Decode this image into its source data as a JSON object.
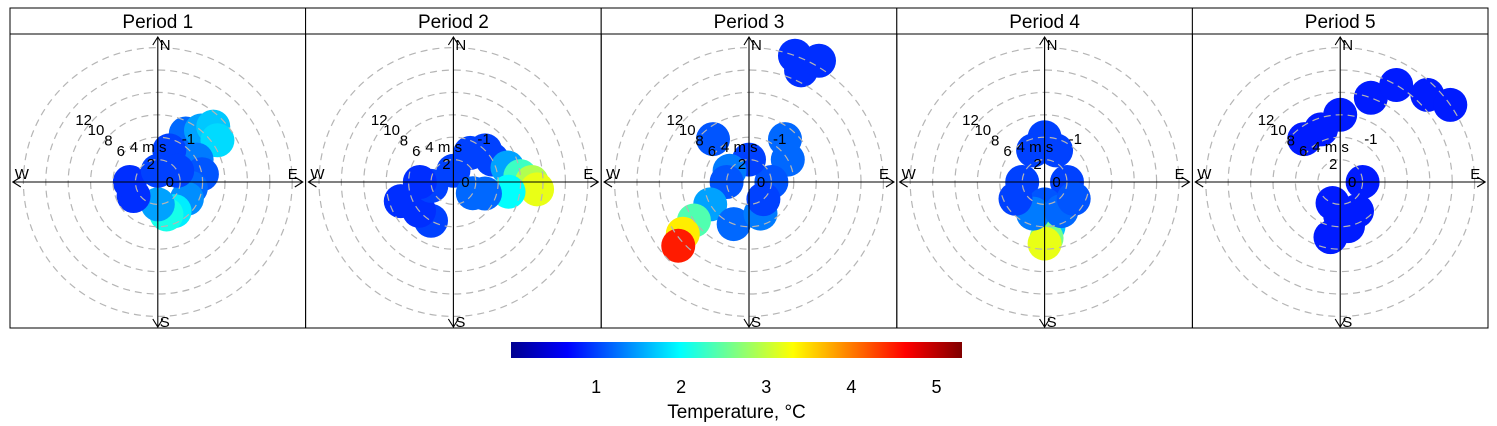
{
  "chart_data": {
    "type": "polar-heatmap",
    "variable": "Temperature",
    "ring_values": [
      2,
      4,
      6,
      8,
      10,
      12
    ],
    "ring_unit_label": "4 m s",
    "ring_unit_superscript": "-1",
    "ring_label_values": [
      "12",
      "10",
      "8",
      "6",
      "2",
      "0"
    ],
    "compass": [
      "N",
      "E",
      "S",
      "W"
    ],
    "panels": [
      {
        "title": "Period 1",
        "cells": [
          {
            "dir": 30,
            "speed": 5,
            "temp": 1.2
          },
          {
            "dir": 40,
            "speed": 6,
            "temp": 1.5
          },
          {
            "dir": 45,
            "speed": 7,
            "temp": 1.7
          },
          {
            "dir": 55,
            "speed": 6.5,
            "temp": 1.8
          },
          {
            "dir": 60,
            "speed": 4,
            "temp": 1.3
          },
          {
            "dir": 80,
            "speed": 4,
            "temp": 1.1
          },
          {
            "dir": 100,
            "speed": 3,
            "temp": 1.2
          },
          {
            "dir": 120,
            "speed": 3,
            "temp": 1.4
          },
          {
            "dir": 150,
            "speed": 3,
            "temp": 1.9
          },
          {
            "dir": 165,
            "speed": 3,
            "temp": 2.1
          },
          {
            "dir": 180,
            "speed": 2,
            "temp": 1.5
          },
          {
            "dir": 240,
            "speed": 2.5,
            "temp": 0.9
          },
          {
            "dir": 270,
            "speed": 2.5,
            "temp": 0.9
          },
          {
            "dir": 20,
            "speed": 3,
            "temp": 1.0
          },
          {
            "dir": 0,
            "speed": 1,
            "temp": 1.0
          },
          {
            "dir": 60,
            "speed": 2,
            "temp": 1.0
          }
        ]
      },
      {
        "title": "Period 2",
        "cells": [
          {
            "dir": 45,
            "speed": 4,
            "temp": 1.0
          },
          {
            "dir": 60,
            "speed": 4,
            "temp": 1.0
          },
          {
            "dir": 75,
            "speed": 5,
            "temp": 1.5
          },
          {
            "dir": 85,
            "speed": 6,
            "temp": 2.3
          },
          {
            "dir": 90,
            "speed": 7,
            "temp": 2.9
          },
          {
            "dir": 95,
            "speed": 7.5,
            "temp": 3.2
          },
          {
            "dir": 100,
            "speed": 5,
            "temp": 2.0
          },
          {
            "dir": 110,
            "speed": 3,
            "temp": 1.2
          },
          {
            "dir": 210,
            "speed": 4,
            "temp": 1.0
          },
          {
            "dir": 230,
            "speed": 4,
            "temp": 0.9
          },
          {
            "dir": 250,
            "speed": 5,
            "temp": 0.9
          },
          {
            "dir": 260,
            "speed": 2,
            "temp": 1.0
          },
          {
            "dir": 270,
            "speed": 3,
            "temp": 0.9
          },
          {
            "dir": 0,
            "speed": 1,
            "temp": 1.0
          },
          {
            "dir": 30,
            "speed": 3,
            "temp": 1.0
          },
          {
            "dir": 120,
            "speed": 2,
            "temp": 1.2
          }
        ]
      },
      {
        "title": "Period 3",
        "cells": [
          {
            "dir": 20,
            "speed": 12,
            "temp": 0.9
          },
          {
            "dir": 25,
            "speed": 11,
            "temp": 0.9
          },
          {
            "dir": 30,
            "speed": 12.5,
            "temp": 0.9
          },
          {
            "dir": 320,
            "speed": 5,
            "temp": 1.1
          },
          {
            "dir": 40,
            "speed": 5,
            "temp": 1.2
          },
          {
            "dir": 60,
            "speed": 4,
            "temp": 1.2
          },
          {
            "dir": 90,
            "speed": 2,
            "temp": 1.1
          },
          {
            "dir": 0,
            "speed": 2,
            "temp": 1.0
          },
          {
            "dir": 300,
            "speed": 2,
            "temp": 1.3
          },
          {
            "dir": 270,
            "speed": 2,
            "temp": 1.1
          },
          {
            "dir": 240,
            "speed": 4,
            "temp": 1.5
          },
          {
            "dir": 235,
            "speed": 6,
            "temp": 2.4
          },
          {
            "dir": 232,
            "speed": 7.5,
            "temp": 3.4
          },
          {
            "dir": 228,
            "speed": 8.5,
            "temp": 4.5
          },
          {
            "dir": 200,
            "speed": 4,
            "temp": 1.2
          },
          {
            "dir": 160,
            "speed": 3,
            "temp": 1.3
          },
          {
            "dir": 140,
            "speed": 2,
            "temp": 1.0
          }
        ]
      },
      {
        "title": "Period 4",
        "cells": [
          {
            "dir": 0,
            "speed": 4,
            "temp": 1.0
          },
          {
            "dir": 20,
            "speed": 3,
            "temp": 1.0
          },
          {
            "dir": 340,
            "speed": 3,
            "temp": 1.0
          },
          {
            "dir": 90,
            "speed": 2,
            "temp": 1.0
          },
          {
            "dir": 270,
            "speed": 2,
            "temp": 1.0
          },
          {
            "dir": 180,
            "speed": 2,
            "temp": 1.1
          },
          {
            "dir": 175,
            "speed": 4,
            "temp": 1.7
          },
          {
            "dir": 178,
            "speed": 5,
            "temp": 2.6
          },
          {
            "dir": 180,
            "speed": 5.5,
            "temp": 3.2
          },
          {
            "dir": 200,
            "speed": 3,
            "temp": 1.3
          },
          {
            "dir": 150,
            "speed": 3,
            "temp": 1.2
          },
          {
            "dir": 120,
            "speed": 3,
            "temp": 1.1
          },
          {
            "dir": 240,
            "speed": 3,
            "temp": 1.0
          }
        ]
      },
      {
        "title": "Period 5",
        "cells": [
          {
            "dir": 0,
            "speed": 6,
            "temp": 0.8
          },
          {
            "dir": 20,
            "speed": 8,
            "temp": 0.8
          },
          {
            "dir": 30,
            "speed": 10,
            "temp": 0.8
          },
          {
            "dir": 45,
            "speed": 11,
            "temp": 0.8
          },
          {
            "dir": 55,
            "speed": 12,
            "temp": 0.8
          },
          {
            "dir": 340,
            "speed": 5,
            "temp": 0.8
          },
          {
            "dir": 320,
            "speed": 5,
            "temp": 0.8
          },
          {
            "dir": 180,
            "speed": 3,
            "temp": 0.8
          },
          {
            "dir": 190,
            "speed": 5,
            "temp": 0.8
          },
          {
            "dir": 170,
            "speed": 4,
            "temp": 0.8
          },
          {
            "dir": 150,
            "speed": 3,
            "temp": 0.8
          },
          {
            "dir": 200,
            "speed": 2,
            "temp": 0.8
          },
          {
            "dir": 90,
            "speed": 2,
            "temp": 0.8
          }
        ]
      }
    ],
    "colorbar": {
      "title": "Temperature, °C",
      "min": 0,
      "max": 5.3,
      "ticks": [
        1,
        2,
        3,
        4,
        5
      ],
      "tick_labels": [
        "1",
        "2",
        "3",
        "4",
        "5"
      ],
      "colors": [
        "#00008f",
        "#0000ff",
        "#0080ff",
        "#00ffff",
        "#80ff80",
        "#ffff00",
        "#ff8000",
        "#ff0000",
        "#800000"
      ]
    }
  }
}
